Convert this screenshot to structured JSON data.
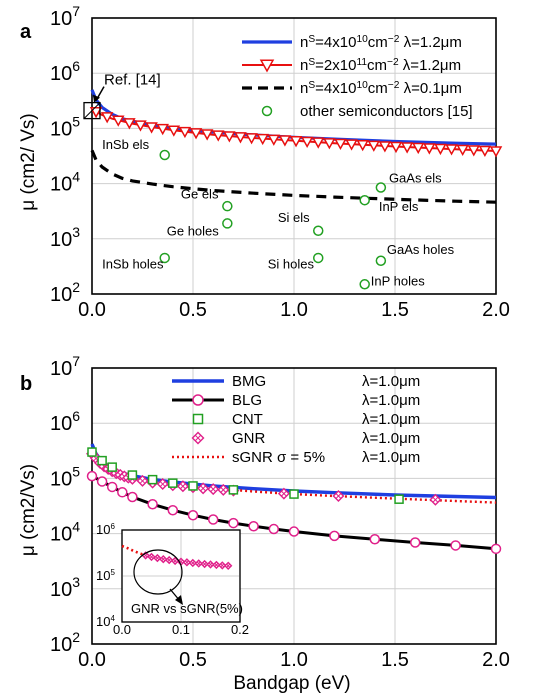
{
  "chart_data": [
    {
      "panel_label": "a",
      "type": "line",
      "xlabel": "",
      "ylabel": "μ (cm2/ Vs)",
      "xlim": [
        0,
        2
      ],
      "ylim_log10": [
        2,
        7
      ],
      "y_scale": "log",
      "grid": true,
      "legend_placement": "top-right",
      "x_ticks": [
        "0.0",
        "0.5",
        "1.0",
        "1.5",
        "2.0"
      ],
      "y_ticks": [
        {
          "base": "10",
          "exp": "2"
        },
        {
          "base": "10",
          "exp": "3"
        },
        {
          "base": "10",
          "exp": "4"
        },
        {
          "base": "10",
          "exp": "5"
        },
        {
          "base": "10",
          "exp": "6"
        },
        {
          "base": "10",
          "exp": "7"
        }
      ],
      "series": [
        {
          "label_parts": [
            "n",
            "S",
            "=4x10",
            "10",
            "cm",
            "−2",
            "  λ=1.2μm"
          ],
          "color": "#1f3fe0",
          "style": "solid",
          "x": [
            0.0,
            0.02,
            0.05,
            0.1,
            0.15,
            0.2,
            0.3,
            0.4,
            0.5,
            0.6,
            0.8,
            1.0,
            1.2,
            1.5,
            1.8,
            2.0
          ],
          "y": [
            500000,
            330000,
            240000,
            180000,
            150000,
            135000,
            115000,
            102000,
            93000,
            86000,
            76000,
            69000,
            64000,
            58000,
            54000,
            52000
          ]
        },
        {
          "label_parts": [
            "n",
            "S",
            "=2x10",
            "11",
            "cm",
            "−2",
            "  λ=1.2μm"
          ],
          "color": "#e81010",
          "style": "solid-triangles",
          "x": [
            0.0,
            0.02,
            0.05,
            0.1,
            0.15,
            0.2,
            0.3,
            0.4,
            0.5,
            0.6,
            0.8,
            1.0,
            1.2,
            1.5,
            1.8,
            2.0
          ],
          "y": [
            210000,
            200000,
            175000,
            150000,
            135000,
            122000,
            105000,
            93000,
            84000,
            77000,
            67000,
            60000,
            54000,
            47000,
            42000,
            39000
          ]
        },
        {
          "label_parts": [
            "n",
            "S",
            "=4x10",
            "10",
            "cm",
            "−2",
            "  λ=0.1μm"
          ],
          "color": "#000000",
          "style": "dashed",
          "x": [
            0.0,
            0.02,
            0.05,
            0.1,
            0.15,
            0.2,
            0.3,
            0.4,
            0.5,
            0.6,
            0.8,
            1.0,
            1.2,
            1.5,
            1.8,
            2.0
          ],
          "y": [
            40000,
            27000,
            20000,
            15000,
            12500,
            11200,
            9800,
            8800,
            8100,
            7500,
            6700,
            6100,
            5700,
            5200,
            4800,
            4600
          ]
        },
        {
          "label": "other semiconductors [15]",
          "color": "#22a022",
          "style": "circles",
          "points": [
            {
              "name": "InSb els",
              "x": 0.36,
              "y": 33000
            },
            {
              "name": "GaAs els",
              "x": 1.43,
              "y": 8500
            },
            {
              "name": "InP els",
              "x": 1.35,
              "y": 5000
            },
            {
              "name": "Ge els",
              "x": 0.67,
              "y": 3900
            },
            {
              "name": "Ge holes",
              "x": 0.67,
              "y": 1900
            },
            {
              "name": "Si els",
              "x": 1.12,
              "y": 1400
            },
            {
              "name": "InSb holes",
              "x": 0.36,
              "y": 450
            },
            {
              "name": "Si holes",
              "x": 1.12,
              "y": 450
            },
            {
              "name": "GaAs holes",
              "x": 1.43,
              "y": 400
            },
            {
              "name": "InP holes",
              "x": 1.35,
              "y": 150
            }
          ]
        }
      ],
      "point_annotations": [
        {
          "text": "InSb els",
          "x": 0.05,
          "y": 42000
        },
        {
          "text": "GaAs els",
          "x": 1.47,
          "y": 10500
        },
        {
          "text": "InP els",
          "x": 1.42,
          "y": 3200
        },
        {
          "text": "Ge els",
          "x": 0.44,
          "y": 5400
        },
        {
          "text": "Ge holes",
          "x": 0.37,
          "y": 1150
        },
        {
          "text": "Si els",
          "x": 0.92,
          "y": 2000
        },
        {
          "text": "InSb holes",
          "x": 0.05,
          "y": 290
        },
        {
          "text": "Si holes",
          "x": 0.87,
          "y": 290
        },
        {
          "text": "GaAs holes",
          "x": 1.46,
          "y": 530
        },
        {
          "text": "InP holes",
          "x": 1.38,
          "y": 142
        }
      ],
      "reference_annotation": {
        "text": "Ref. [14]",
        "x": 0.0,
        "y": 210000
      }
    },
    {
      "panel_label": "b",
      "type": "line",
      "xlabel": "Bandgap (eV)",
      "ylabel": "μ (cm2/Vs)",
      "xlim": [
        0,
        2
      ],
      "ylim_log10": [
        2,
        7
      ],
      "y_scale": "log",
      "grid": true,
      "legend_placement": "top-right",
      "x_ticks": [
        "0.0",
        "0.5",
        "1.0",
        "1.5",
        "2.0"
      ],
      "y_ticks": [
        {
          "base": "10",
          "exp": "2"
        },
        {
          "base": "10",
          "exp": "3"
        },
        {
          "base": "10",
          "exp": "4"
        },
        {
          "base": "10",
          "exp": "5"
        },
        {
          "base": "10",
          "exp": "6"
        },
        {
          "base": "10",
          "exp": "7"
        }
      ],
      "series": [
        {
          "label": "BMG",
          "lambda_label": "λ=1.0μm",
          "color": "#1f3fe0",
          "style": "solid",
          "x": [
            0.0,
            0.02,
            0.05,
            0.1,
            0.15,
            0.2,
            0.3,
            0.4,
            0.5,
            0.6,
            0.8,
            1.0,
            1.2,
            1.5,
            1.8,
            2.0
          ],
          "y": [
            420000,
            280000,
            200000,
            150000,
            125000,
            112000,
            96000,
            86000,
            79000,
            73000,
            65000,
            59000,
            55000,
            50000,
            47000,
            45000
          ]
        },
        {
          "label": "BLG",
          "lambda_label": "λ=1.0μm",
          "color": "#000000",
          "style": "solid-magenta-circles",
          "x": [
            0.0,
            0.05,
            0.1,
            0.15,
            0.2,
            0.3,
            0.4,
            0.5,
            0.6,
            0.7,
            0.8,
            0.9,
            1.0,
            1.2,
            1.4,
            1.6,
            1.8,
            2.0
          ],
          "y": [
            110000,
            88000,
            70000,
            56000,
            46000,
            34000,
            26500,
            21500,
            18000,
            15500,
            13600,
            12100,
            10900,
            9100,
            7900,
            6900,
            6100,
            5300
          ]
        },
        {
          "label": "CNT",
          "lambda_label": "λ=1.0μm",
          "color": "#22a022",
          "style": "squares",
          "x": [
            0.0,
            0.05,
            0.1,
            0.2,
            0.3,
            0.4,
            0.5,
            0.7,
            1.0,
            1.52
          ],
          "y": [
            300000,
            210000,
            160000,
            115000,
            95000,
            82000,
            73000,
            62000,
            52000,
            42000
          ]
        },
        {
          "label": "GNR",
          "lambda_label": "λ=1.0μm",
          "color": "#e0208a",
          "style": "diamonds",
          "x": [
            0.0,
            0.02,
            0.04,
            0.06,
            0.08,
            0.1,
            0.12,
            0.14,
            0.16,
            0.18,
            0.2,
            0.25,
            0.3,
            0.35,
            0.4,
            0.45,
            0.5,
            0.55,
            0.6,
            0.65,
            0.7,
            0.95,
            1.22,
            1.7
          ],
          "y": [
            280000,
            230000,
            190000,
            165000,
            148000,
            135000,
            124000,
            116000,
            109000,
            103000,
            98000,
            90000,
            84000,
            79000,
            75000,
            72000,
            69000,
            66000,
            64000,
            62000,
            60000,
            53000,
            48000,
            41000
          ]
        },
        {
          "label": "sGNR σ = 5%",
          "lambda_label": "λ=1.0μm",
          "color": "#e81010",
          "style": "dotted",
          "x": [
            0.0,
            0.02,
            0.05,
            0.1,
            0.15,
            0.2,
            0.3,
            0.4,
            0.5,
            0.6,
            0.8,
            1.0,
            1.2,
            1.5,
            1.8,
            2.0
          ],
          "y": [
            330000,
            240000,
            175000,
            135000,
            115000,
            102000,
            88000,
            78000,
            71000,
            66000,
            58000,
            52000,
            48000,
            43000,
            39000,
            36500
          ]
        }
      ],
      "inset": {
        "xlim": [
          0,
          0.2
        ],
        "ylim_log10": [
          4,
          6
        ],
        "x_ticks": [
          "0.0",
          "0.1",
          "0.2"
        ],
        "y_ticks": [
          {
            "base": "10",
            "exp": "4"
          },
          {
            "base": "10",
            "exp": "5"
          },
          {
            "base": "10",
            "exp": "6"
          }
        ],
        "annotation": "GNR vs sGNR(5%)",
        "series": [
          {
            "name": "sGNR",
            "color": "#e81010",
            "style": "dotted",
            "x": [
              0.0,
              0.01,
              0.02,
              0.03,
              0.04,
              0.05
            ],
            "y": [
              450000,
              400000,
              350000,
              310000,
              280000,
              255000
            ]
          },
          {
            "name": "GNR",
            "color": "#e0208a",
            "style": "diamonds",
            "x": [
              0.04,
              0.05,
              0.06,
              0.07,
              0.08,
              0.09,
              0.1,
              0.11,
              0.12,
              0.13,
              0.14,
              0.15,
              0.16,
              0.17,
              0.18
            ],
            "y": [
              280000,
              260000,
              245000,
              232000,
              222000,
              213000,
              205000,
              198000,
              192000,
              187000,
              182000,
              178000,
              174000,
              170000,
              167000
            ]
          }
        ]
      }
    }
  ]
}
